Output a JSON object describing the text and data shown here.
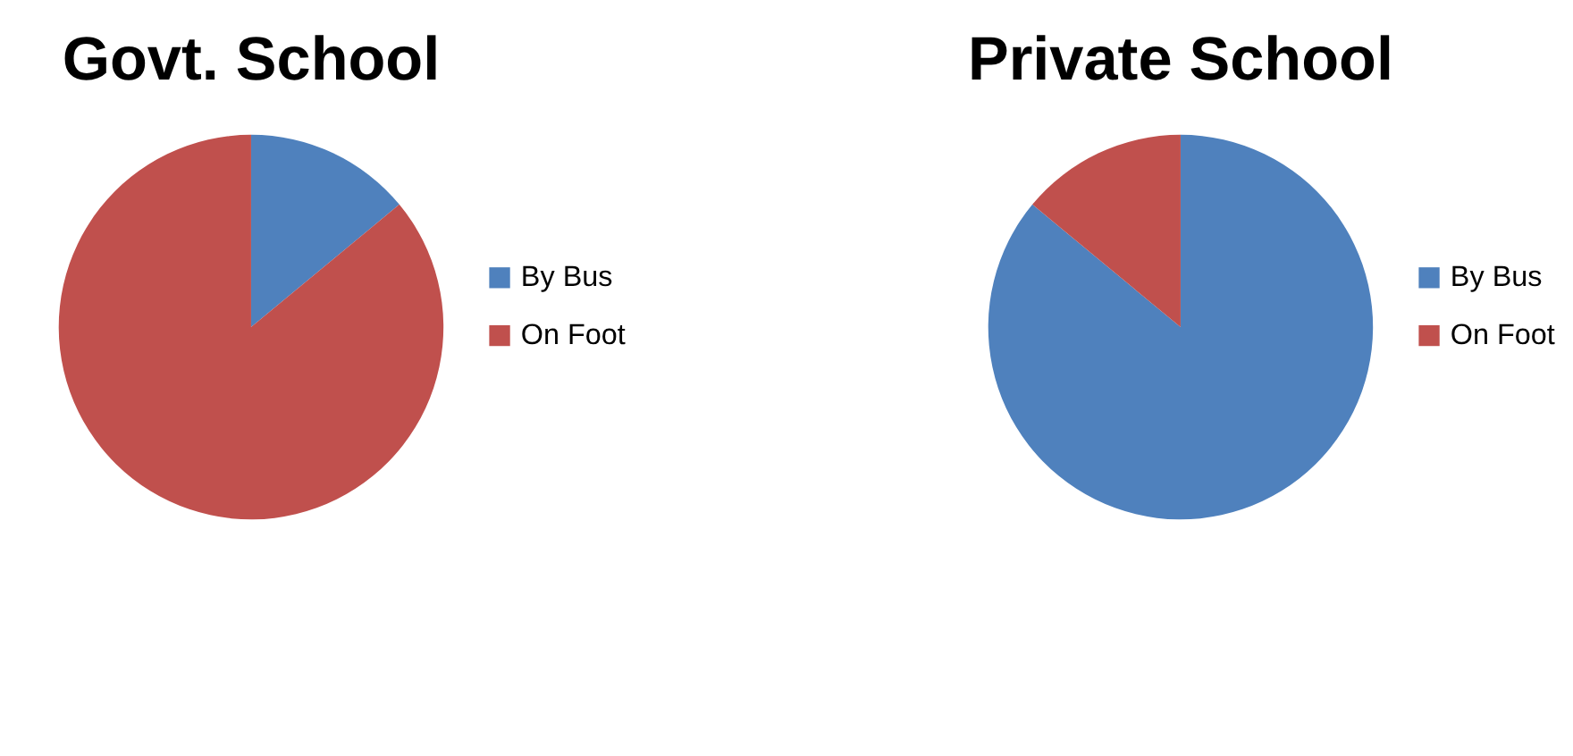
{
  "chart_data": [
    {
      "type": "pie",
      "title": "Govt. School",
      "categories": [
        "By Bus",
        "On Foot"
      ],
      "values": [
        14,
        86
      ],
      "colors": [
        "#4f81bd",
        "#c0504d"
      ],
      "legend": "right"
    },
    {
      "type": "pie",
      "title": "Private School",
      "categories": [
        "By Bus",
        "On Foot"
      ],
      "values": [
        86,
        14
      ],
      "colors": [
        "#4f81bd",
        "#c0504d"
      ],
      "legend": "right"
    }
  ]
}
